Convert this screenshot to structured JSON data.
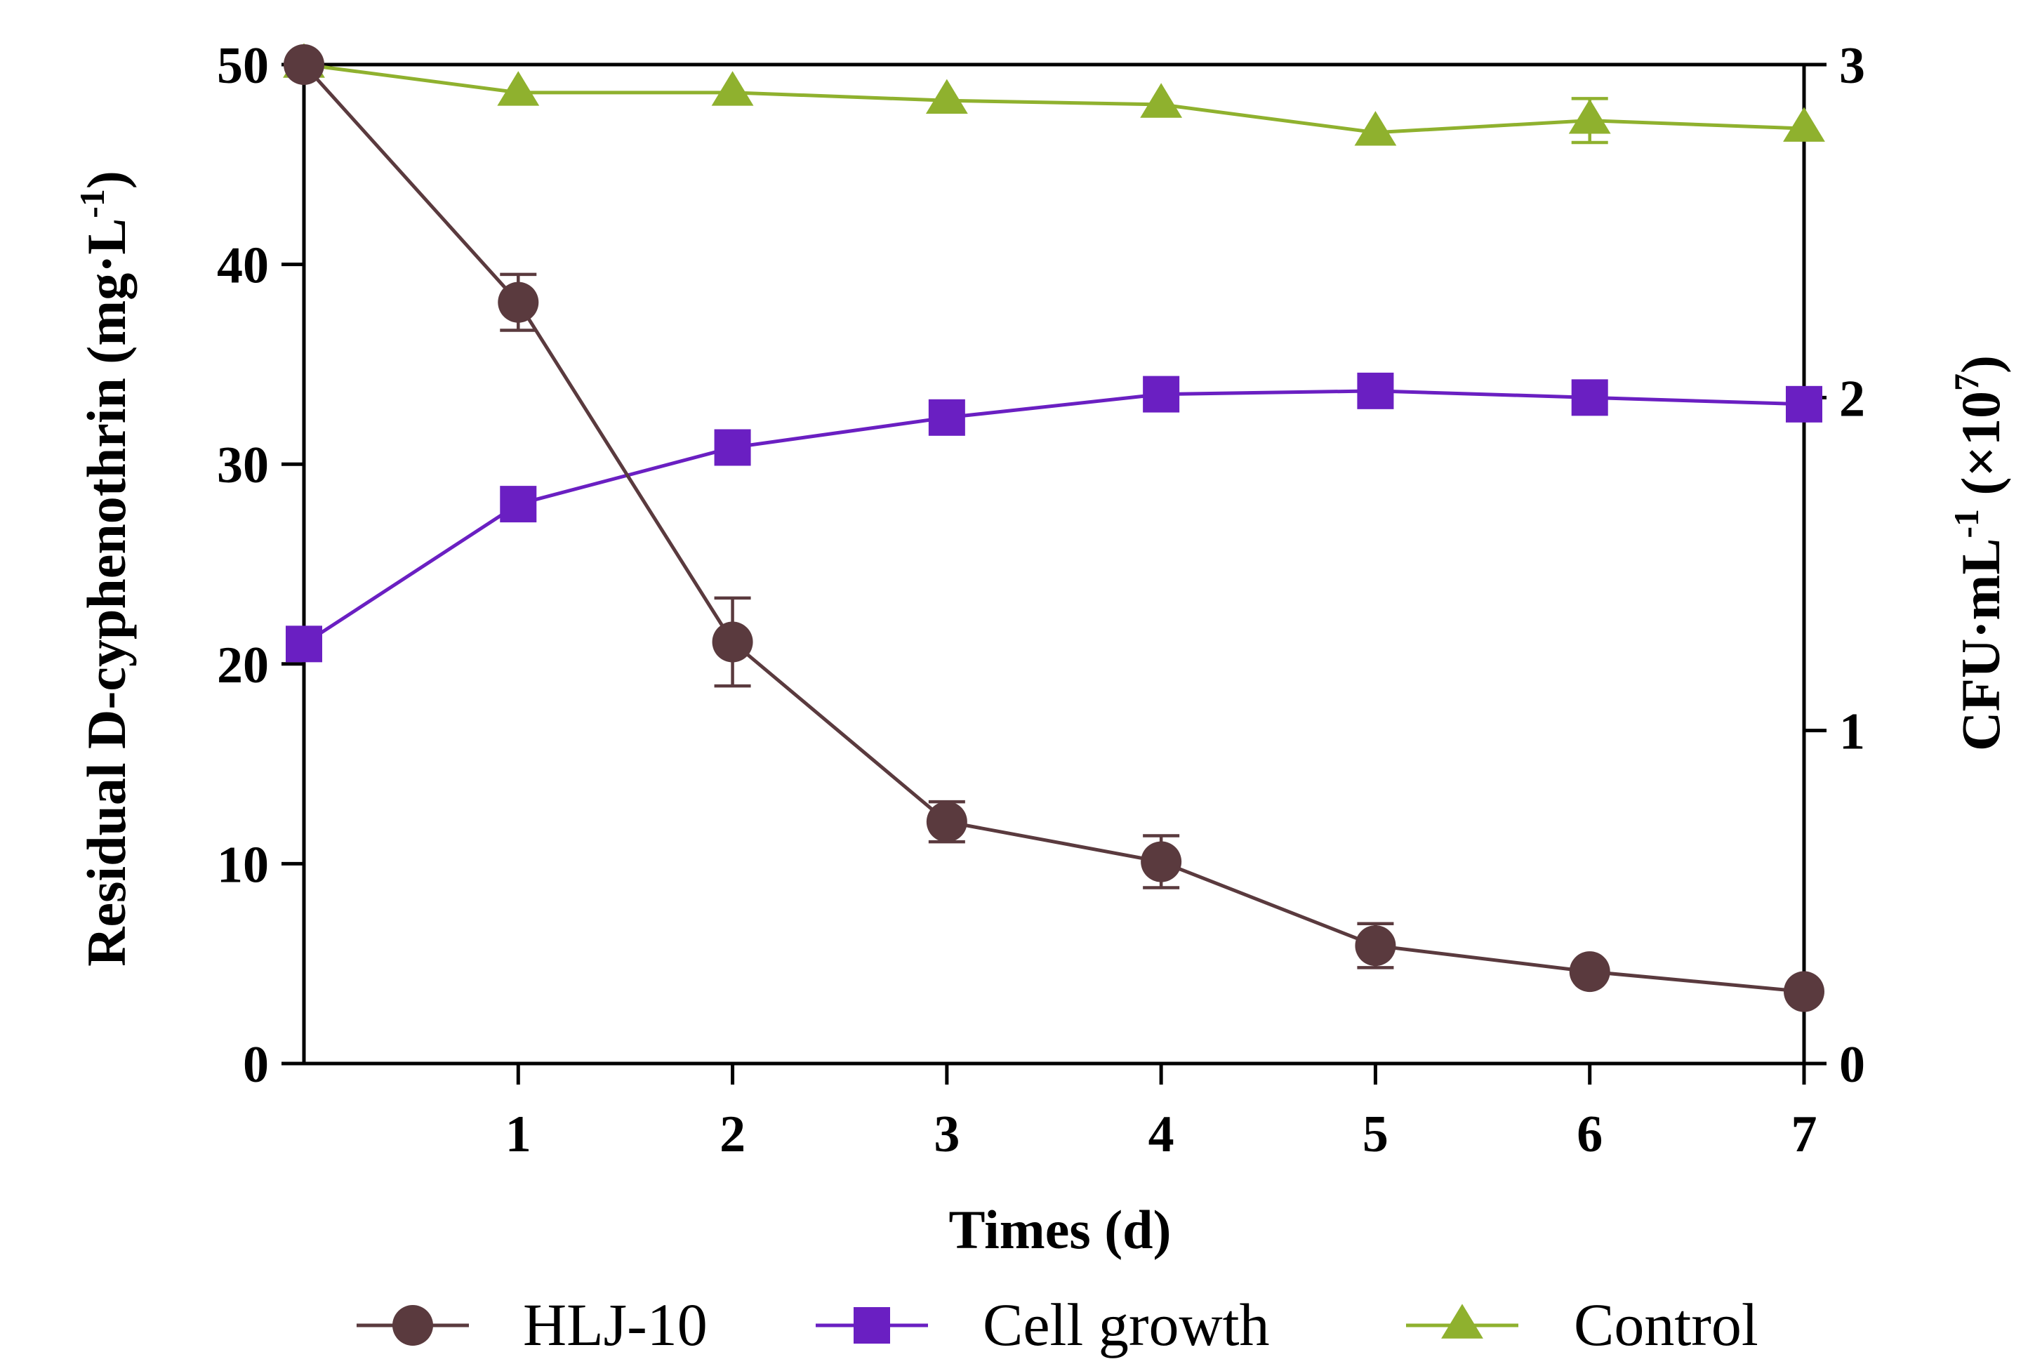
{
  "chart_data": {
    "type": "line",
    "x": [
      0,
      1,
      2,
      3,
      4,
      5,
      6,
      7
    ],
    "x_tick_labels": [
      "1",
      "2",
      "3",
      "4",
      "5",
      "6",
      "7"
    ],
    "xlim": [
      0,
      7
    ],
    "xlabel": "Times (d)",
    "ylabel_left": {
      "main": "Residual D-cyphenothrin (mg·L",
      "sup": "-1",
      "close": ")"
    },
    "ylim_left": [
      0,
      50
    ],
    "y_left_ticks": [
      "0",
      "10",
      "20",
      "30",
      "40",
      "50"
    ],
    "ylabel_right": {
      "main": "CFU·mL",
      "sup1": "-1",
      "mid": " (×10",
      "sup2": "7",
      "close": ")"
    },
    "ylim_right": [
      0,
      3
    ],
    "y_right_ticks": [
      "0",
      "1",
      "2",
      "3"
    ],
    "grid": false,
    "legend_position": "bottom",
    "series": [
      {
        "name": "HLJ-10",
        "axis": "left",
        "marker": "circle",
        "color": "#5a3a3e",
        "values": [
          50,
          38.1,
          21.1,
          12.1,
          10.1,
          5.9,
          4.6,
          3.6
        ],
        "errors": [
          0,
          1.4,
          2.2,
          1.0,
          1.3,
          1.1,
          0,
          0
        ]
      },
      {
        "name": "Cell growth",
        "axis": "right",
        "marker": "square",
        "color": "#6a1fc2",
        "values": [
          1.26,
          1.68,
          1.85,
          1.94,
          2.01,
          2.02,
          2.0,
          1.98
        ],
        "errors": [
          0,
          0,
          0,
          0,
          0,
          0,
          0,
          0
        ]
      },
      {
        "name": "Control",
        "axis": "left",
        "marker": "triangle",
        "color": "#8fb12e",
        "values": [
          50,
          48.6,
          48.6,
          48.2,
          48.0,
          46.6,
          47.2,
          46.8
        ],
        "errors": [
          0,
          0,
          0,
          0,
          0,
          0,
          1.1,
          0
        ]
      }
    ]
  }
}
